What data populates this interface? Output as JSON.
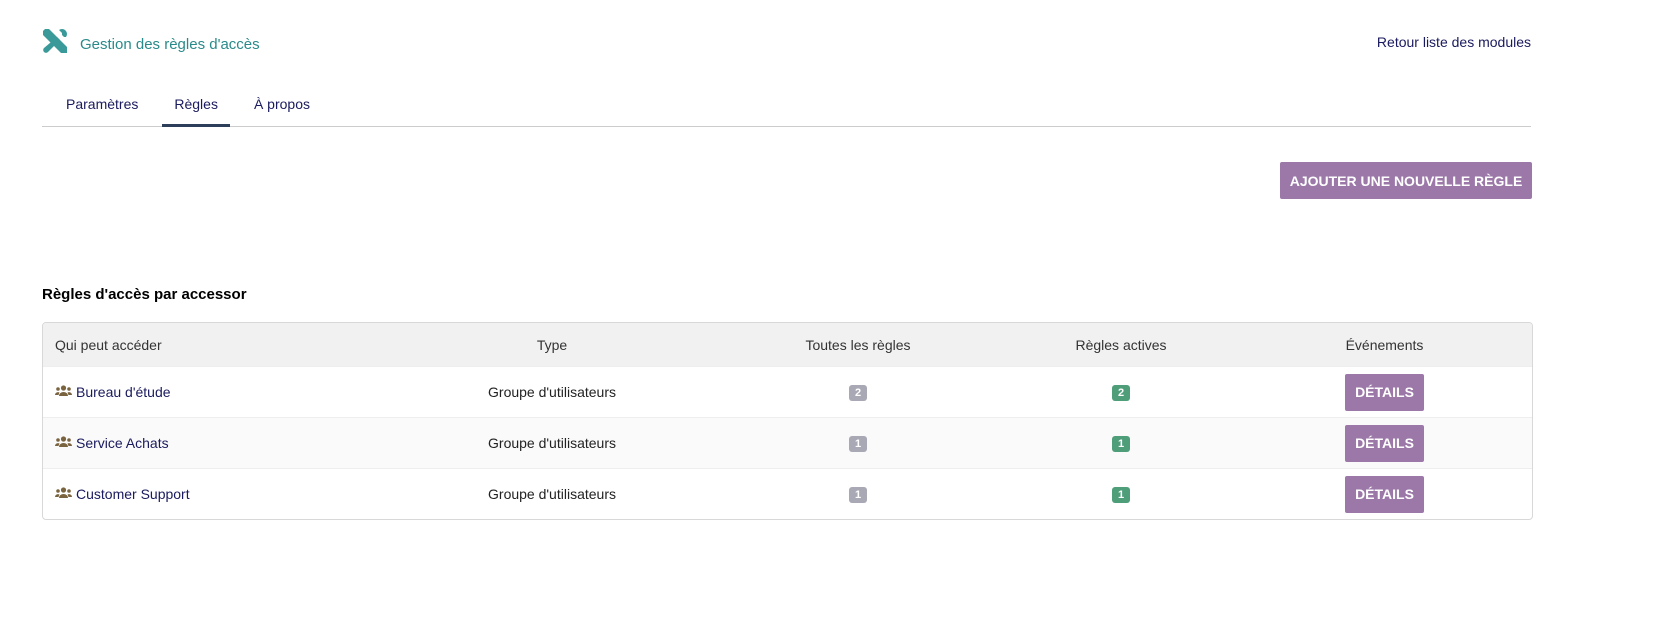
{
  "header": {
    "title": "Gestion des règles d'accès",
    "back_link": "Retour liste des modules",
    "icon": "tools-icon",
    "title_color": "#2a8a8a"
  },
  "tabs": [
    {
      "label": "Paramètres",
      "active": false
    },
    {
      "label": "Règles",
      "active": true
    },
    {
      "label": "À propos",
      "active": false
    }
  ],
  "actions": {
    "add_rule": "AJOUTER UNE NOUVELLE RÈGLE",
    "button_color": "#9b78a8"
  },
  "section": {
    "title": "Règles d'accès par accessor"
  },
  "table": {
    "columns": [
      "Qui peut accéder",
      "Type",
      "Toutes les règles",
      "Règles actives",
      "Événements"
    ],
    "rows": [
      {
        "name": "Bureau d'étude",
        "type": "Groupe d'utilisateurs",
        "all": "2",
        "active": "2",
        "action": "DÉTAILS",
        "icon": "users-icon"
      },
      {
        "name": "Service Achats",
        "type": "Groupe d'utilisateurs",
        "all": "1",
        "active": "1",
        "action": "DÉTAILS",
        "icon": "users-icon"
      },
      {
        "name": "Customer Support",
        "type": "Groupe d'utilisateurs",
        "all": "1",
        "active": "1",
        "action": "DÉTAILS",
        "icon": "users-icon"
      }
    ]
  }
}
